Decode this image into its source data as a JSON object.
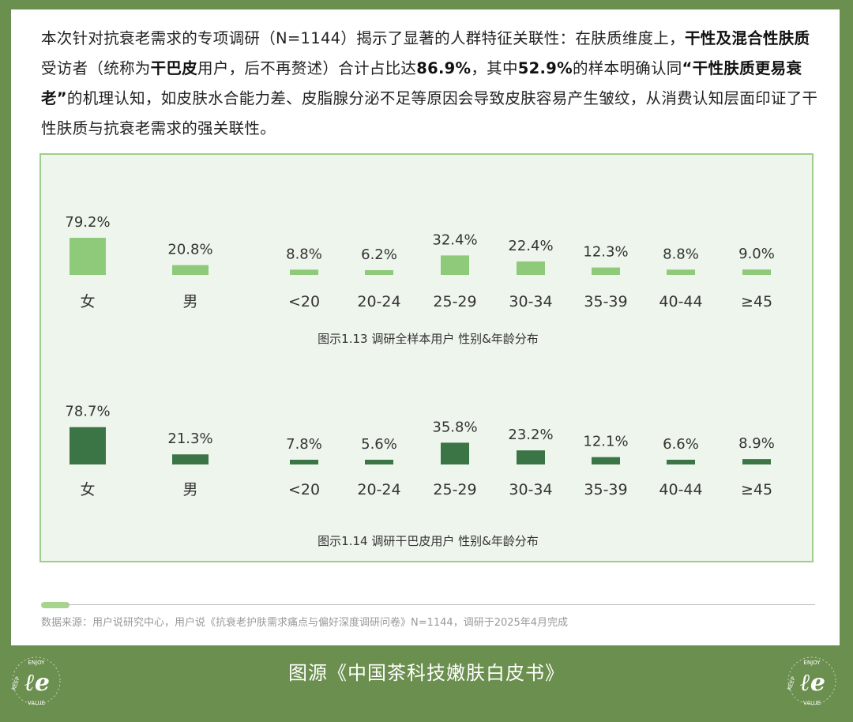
{
  "intro": {
    "p1": "本次针对抗衰老需求的专项调研（N=1144）揭示了显著的人群特征关联性：在肤质维度上，",
    "b1": "干性及混合性肤质",
    "p2": "受访者（统称为",
    "b2": "干巴皮",
    "p3": "用户，后不再赘述）合计占比达",
    "b3": "86.9%",
    "p4": "，其中",
    "b4": "52.9%",
    "p5": "的样本明确认同",
    "b5": "“干性肤质更易衰老”",
    "p6": "的机理认知，如皮肤水合能力差、皮脂腺分泌不足等原因会导致皮肤容易产生皱纹，从消费认知层面印证了干性肤质与抗衰老需求的强关联性。"
  },
  "chart_data": [
    {
      "type": "bar",
      "title": "图示1.13 调研全样本用户 性别&年龄分布",
      "color": "#8fc97a",
      "categories": [
        "女",
        "男",
        "<20",
        "20-24",
        "25-29",
        "30-34",
        "35-39",
        "40-44",
        "≥45"
      ],
      "labels": [
        "79.2%",
        "20.8%",
        "8.8%",
        "6.2%",
        "32.4%",
        "22.4%",
        "12.3%",
        "8.8%",
        "9.0%"
      ],
      "values": [
        79.2,
        20.8,
        8.8,
        6.2,
        32.4,
        22.4,
        12.3,
        8.8,
        9.0
      ]
    },
    {
      "type": "bar",
      "title": "图示1.14 调研干巴皮用户 性别&年龄分布",
      "color": "#3b7545",
      "categories": [
        "女",
        "男",
        "<20",
        "20-24",
        "25-29",
        "30-34",
        "35-39",
        "40-44",
        "≥45"
      ],
      "labels": [
        "78.7%",
        "21.3%",
        "7.8%",
        "5.6%",
        "35.8%",
        "23.2%",
        "12.1%",
        "6.6%",
        "8.9%"
      ],
      "values": [
        78.7,
        21.3,
        7.8,
        5.6,
        35.8,
        23.2,
        12.1,
        6.6,
        8.9
      ]
    }
  ],
  "source": "数据来源：用户说研究中心，用户说《抗衰老护肤需求痛点与偏好深度调研问卷》N=1144，调研于2025年4月完成",
  "footer": {
    "title": "图源《中国茶科技嫩肤白皮书》",
    "logo_text": "ENJOY",
    "logo_text_2": "KEEP",
    "logo_text_3": "VALUE",
    "logo_glyph": "ℓe"
  },
  "colors": {
    "frame": "#6b8f4e",
    "light_bar": "#8fc97a",
    "dark_bar": "#3b7545",
    "panel_bg": "#eef5ec"
  }
}
